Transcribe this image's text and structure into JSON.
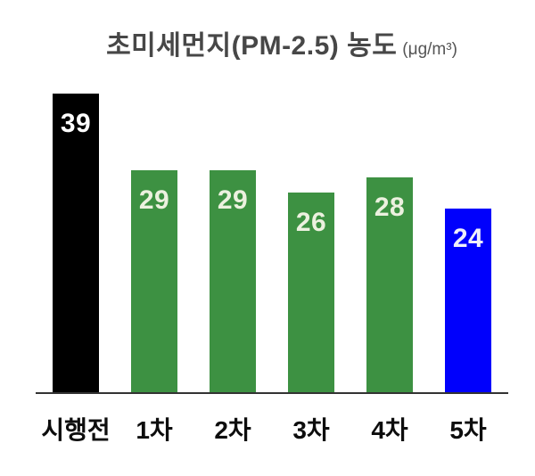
{
  "title": {
    "main": "초미세먼지(PM-2.5) 농도",
    "unit": "(μg/m³)"
  },
  "chart_data": {
    "type": "bar",
    "title": "초미세먼지(PM-2.5) 농도",
    "unit_label": "(μg/m³)",
    "categories": [
      "시행전",
      "1차",
      "2차",
      "3차",
      "4차",
      "5차"
    ],
    "values": [
      39,
      29,
      29,
      26,
      28,
      24
    ],
    "bar_colors": [
      "#000000",
      "#3D9142",
      "#3D9142",
      "#3D9142",
      "#3D9142",
      "#0000FC"
    ],
    "value_label_colors": [
      "#FFFFFF",
      "#ECF1DF",
      "#ECF1DF",
      "#ECF1DF",
      "#ECF1DF",
      "#EFEFFA"
    ],
    "xlabel": "",
    "ylabel": "",
    "ylim": [
      0,
      42
    ],
    "grid": false,
    "legend": "none",
    "data_labels": "inside-top",
    "x_axis_line": true,
    "y_axis_line": false
  },
  "colors": {
    "background": "#FFFFFF",
    "title_text": "#474747",
    "unit_text": "#555555",
    "axis_line": "#333333",
    "x_label_text": "#0D0D0D"
  }
}
